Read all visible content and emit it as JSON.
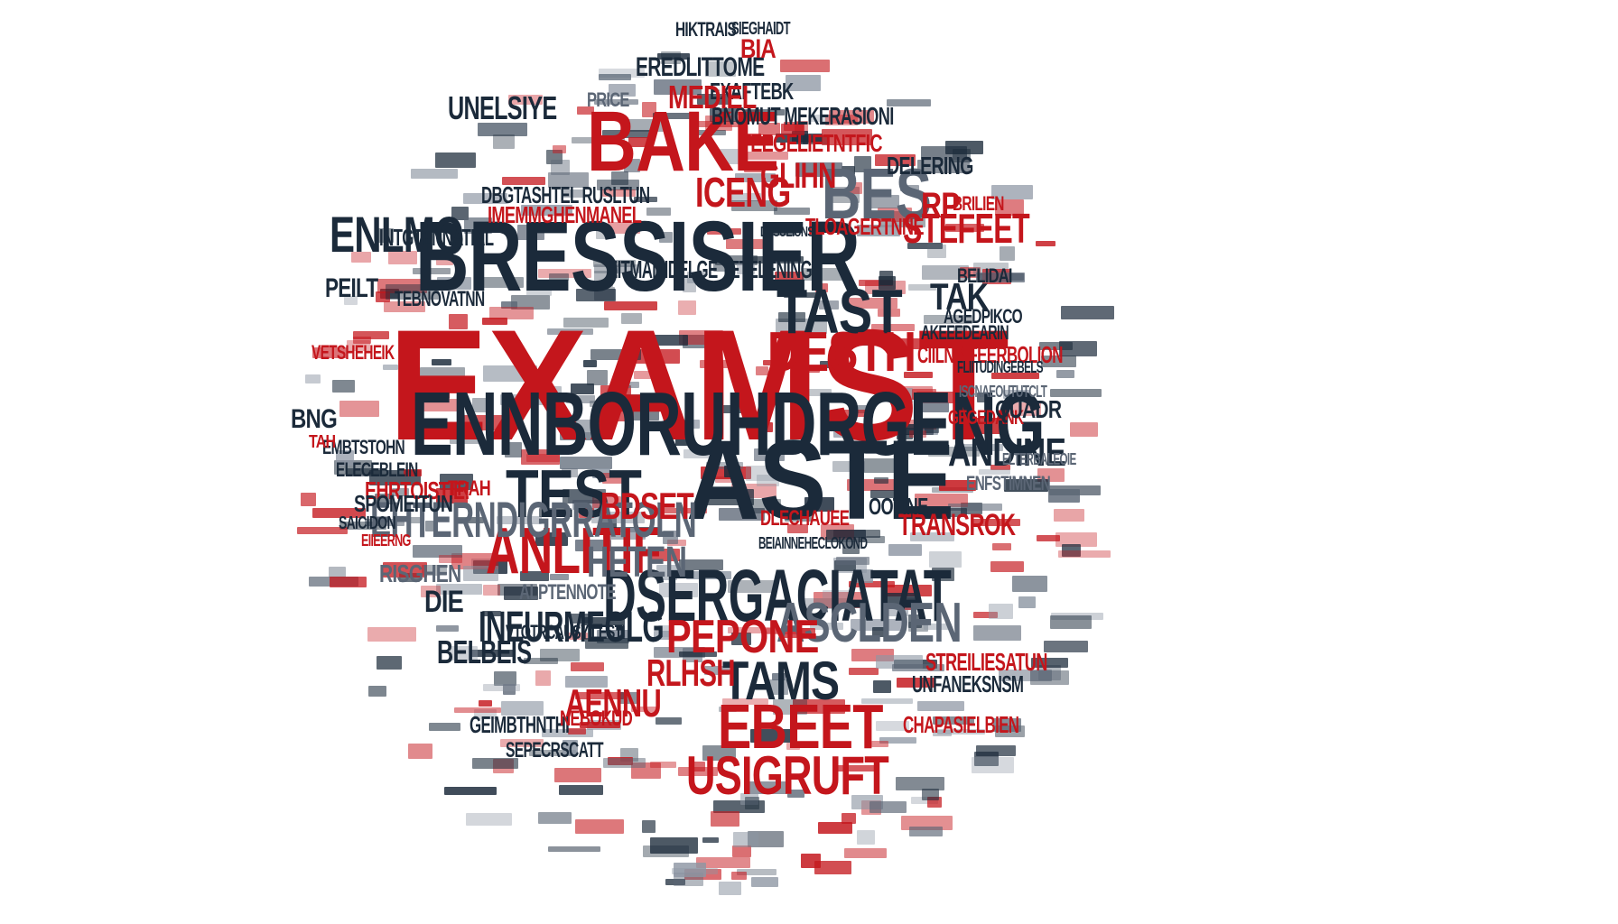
{
  "colors": {
    "red": "#c4161c",
    "navy": "#1b2a3a",
    "gray": "#5b6675",
    "light_gray": "#8d96a3",
    "background": "#ffffff"
  },
  "words": [
    {
      "text": "EXAMST",
      "color": "red"
    },
    {
      "text": "BRESSISIER",
      "color": "navy"
    },
    {
      "text": "ENNBORUHDRGENG",
      "color": "navy"
    },
    {
      "text": "TEST",
      "color": "navy"
    },
    {
      "text": "ASTE",
      "color": "navy"
    },
    {
      "text": "BAKE",
      "color": "red"
    },
    {
      "text": "TAST",
      "color": "navy"
    },
    {
      "text": "TAK",
      "color": "navy"
    },
    {
      "text": "BES",
      "color": "gray"
    },
    {
      "text": "DESTH",
      "color": "red"
    },
    {
      "text": "ANLITIF",
      "color": "red"
    },
    {
      "text": "EHTERNDIGRRATOLN",
      "color": "gray"
    },
    {
      "text": "DSERGACIATAT",
      "color": "navy"
    },
    {
      "text": "ASCLDEN",
      "color": "gray"
    },
    {
      "text": "PEPONE",
      "color": "red"
    },
    {
      "text": "TAMS",
      "color": "navy"
    },
    {
      "text": "USIGRUFT",
      "color": "red"
    },
    {
      "text": "INEURMEGLG",
      "color": "navy"
    },
    {
      "text": "ENLMO",
      "color": "navy"
    },
    {
      "text": "ANDINE",
      "color": "navy"
    },
    {
      "text": "RLHSH",
      "color": "red"
    },
    {
      "text": "AENNU",
      "color": "red"
    },
    {
      "text": "EBEET",
      "color": "red"
    },
    {
      "text": "EHRTOISTIE!",
      "color": "red"
    },
    {
      "text": "SPOMEITUN",
      "color": "navy"
    },
    {
      "text": "BELBEIS",
      "color": "navy"
    },
    {
      "text": "IMEMMGHENMANEL",
      "color": "red"
    },
    {
      "text": "DBGTASHTEL RUSLTUN",
      "color": "navy"
    },
    {
      "text": "EITMAMIDELGE TETELENING",
      "color": "navy"
    },
    {
      "text": "TEBNOVATNN",
      "color": "navy"
    },
    {
      "text": "CIILNBIFEERBOLION",
      "color": "red"
    },
    {
      "text": "AKEEEDEARIN",
      "color": "navy"
    },
    {
      "text": "AGEDPIKCO",
      "color": "navy"
    },
    {
      "text": "TEEGELIETNTFIC",
      "color": "red"
    },
    {
      "text": "BNOMUT MEKERASIONI",
      "color": "navy"
    },
    {
      "text": "EXAFTEBK",
      "color": "navy"
    },
    {
      "text": "MEDIEL",
      "color": "red"
    },
    {
      "text": "EREDLITTOME",
      "color": "navy"
    },
    {
      "text": "UNELSIYE",
      "color": "navy"
    },
    {
      "text": "PRICE",
      "color": "gray"
    },
    {
      "text": "ICENG",
      "color": "red"
    },
    {
      "text": "GLIHN",
      "color": "red"
    },
    {
      "text": "STEFEET",
      "color": "red"
    },
    {
      "text": "TLOAGERTNNE",
      "color": "red"
    },
    {
      "text": "DELERING",
      "color": "navy"
    },
    {
      "text": "DESUEIUNS",
      "color": "navy"
    },
    {
      "text": "BRILIEN",
      "color": "red"
    },
    {
      "text": "TRANSROK",
      "color": "red"
    },
    {
      "text": "OOTINE",
      "color": "navy"
    },
    {
      "text": "DLECHAUEE",
      "color": "red"
    },
    {
      "text": "GEGEDANK",
      "color": "red"
    },
    {
      "text": "QUADR",
      "color": "navy"
    },
    {
      "text": "ISCNAEOUTUTCLT",
      "color": "gray"
    },
    {
      "text": "FLIITUDINGEBELS",
      "color": "navy"
    },
    {
      "text": "STREILIESATUN",
      "color": "red"
    },
    {
      "text": "UNFANEKSNSM",
      "color": "navy"
    },
    {
      "text": "RISGHEN",
      "color": "gray"
    },
    {
      "text": "DIE",
      "color": "navy"
    },
    {
      "text": "INTGTENNATIAL",
      "color": "navy"
    },
    {
      "text": "EMBTSTOHN",
      "color": "navy"
    },
    {
      "text": "ELECEBLEIN",
      "color": "navy"
    },
    {
      "text": "TRAH",
      "color": "red"
    },
    {
      "text": "BDSET",
      "color": "red"
    },
    {
      "text": "HETEN",
      "color": "gray"
    },
    {
      "text": "SEPECRSCATT",
      "color": "navy"
    },
    {
      "text": "GEIMBTHNTHI",
      "color": "navy"
    },
    {
      "text": "NEBOKUD",
      "color": "red"
    },
    {
      "text": "BEIAINNEHECLOKOND",
      "color": "navy"
    },
    {
      "text": "PEILT",
      "color": "navy"
    },
    {
      "text": "VETSHEHEIK",
      "color": "red"
    },
    {
      "text": "BNG",
      "color": "navy"
    },
    {
      "text": "TAH",
      "color": "red"
    },
    {
      "text": "EIIEERNG",
      "color": "red"
    },
    {
      "text": "SAICIDON",
      "color": "navy"
    },
    {
      "text": "ENFSTIMNEN",
      "color": "gray"
    },
    {
      "text": "CHAPASIELBIEN",
      "color": "red"
    },
    {
      "text": "ELTERBALEOIE",
      "color": "gray"
    },
    {
      "text": "BELIDAI",
      "color": "navy"
    },
    {
      "text": "RP",
      "color": "red"
    },
    {
      "text": "ALPTENNOTE",
      "color": "gray"
    },
    {
      "text": "VTOTRCAUSY LESTI",
      "color": "navy"
    },
    {
      "text": "HIKTRAIS",
      "color": "navy"
    },
    {
      "text": "SIEGHAIDT",
      "color": "navy"
    },
    {
      "text": "BIA",
      "color": "red"
    }
  ]
}
